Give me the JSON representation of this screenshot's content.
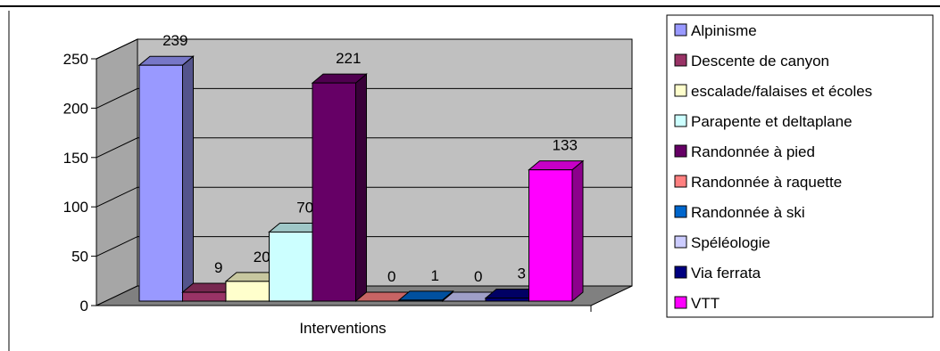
{
  "chart_data": {
    "type": "bar",
    "style": "3d-clustered-column",
    "categories": [
      "Interventions"
    ],
    "xlabel": "Interventions",
    "ylim": [
      0,
      250
    ],
    "yticks": [
      0,
      50,
      100,
      150,
      200,
      250
    ],
    "grid": true,
    "legend_position": "right",
    "series": [
      {
        "name": "Alpinisme",
        "value": 239,
        "color": "#9999FF"
      },
      {
        "name": "Descente de canyon",
        "value": 9,
        "color": "#993366"
      },
      {
        "name": "escalade/falaises et écoles",
        "value": 20,
        "color": "#FFFFCC"
      },
      {
        "name": "Parapente et deltaplane",
        "value": 70,
        "color": "#CCFFFF"
      },
      {
        "name": "Randonnée à pied",
        "value": 221,
        "color": "#660066"
      },
      {
        "name": "Randonnée à raquette",
        "value": 0,
        "color": "#FF8080"
      },
      {
        "name": "Randonnée à ski",
        "value": 1,
        "color": "#0066CC"
      },
      {
        "name": "Spéléologie",
        "value": 0,
        "color": "#CCCCFF"
      },
      {
        "name": "Via ferrata",
        "value": 3,
        "color": "#000080"
      },
      {
        "name": "VTT",
        "value": 133,
        "color": "#FF00FF"
      }
    ]
  }
}
